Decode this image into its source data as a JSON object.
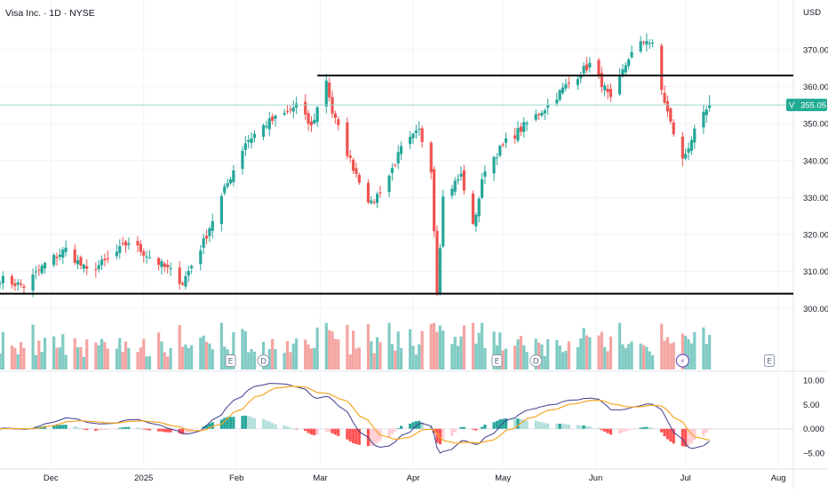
{
  "header": {
    "title": "Visa Inc. · 1D · NYSE",
    "currency": "USD"
  },
  "colors": {
    "up": "#26a69a",
    "down": "#ef5350",
    "vol_up": "#80cbc4",
    "vol_down": "#f4a4a2",
    "macd": "#3c3c8f",
    "signal": "#f5a623",
    "grid": "#f0f3fa",
    "last_price_bg": "#22ab94"
  },
  "chart_data": [
    {
      "type": "candlestick",
      "title": "Visa Inc. · 1D · NYSE",
      "y_unit": "USD",
      "y_range": [
        292,
        378
      ],
      "y_ticks": [
        300,
        310,
        320,
        330,
        340,
        350,
        360,
        370
      ],
      "x_range": [
        "2024-11-14",
        "2025-08-06"
      ],
      "x_ticks": [
        {
          "date": "2024-12-01",
          "label": "Dec"
        },
        {
          "date": "2025-01-01",
          "label": "2025"
        },
        {
          "date": "2025-02-01",
          "label": "Feb"
        },
        {
          "date": "2025-03-01",
          "label": "Mar"
        },
        {
          "date": "2025-04-01",
          "label": "Apr"
        },
        {
          "date": "2025-05-01",
          "label": "May"
        },
        {
          "date": "2025-06-01",
          "label": "Jun"
        },
        {
          "date": "2025-07-01",
          "label": "Jul"
        },
        {
          "date": "2025-08-01",
          "label": "Aug"
        }
      ],
      "last_price": {
        "symbol": "V",
        "value": 355.05
      },
      "horizontal_lines": [
        363,
        304
      ],
      "events": [
        {
          "date": "2025-01-30",
          "letter": "E"
        },
        {
          "date": "2025-02-10",
          "letter": "D"
        },
        {
          "date": "2025-04-29",
          "letter": "E"
        },
        {
          "date": "2025-05-12",
          "letter": "D"
        },
        {
          "date": "2025-06-30",
          "letter": "⚡"
        },
        {
          "date": "2025-07-29",
          "letter": "E"
        }
      ],
      "anchors": [
        [
          "2024-11-14",
          308
        ],
        [
          "2024-11-22",
          306
        ],
        [
          "2024-11-29",
          312
        ],
        [
          "2024-12-06",
          316
        ],
        [
          "2024-12-13",
          310
        ],
        [
          "2024-12-20",
          313
        ],
        [
          "2024-12-27",
          318
        ],
        [
          "2025-01-03",
          314
        ],
        [
          "2025-01-10",
          310
        ],
        [
          "2025-01-14",
          307
        ],
        [
          "2025-01-21",
          318
        ],
        [
          "2025-01-28",
          332
        ],
        [
          "2025-02-04",
          345
        ],
        [
          "2025-02-11",
          350
        ],
        [
          "2025-02-18",
          353
        ],
        [
          "2025-02-21",
          355
        ],
        [
          "2025-02-26",
          349
        ],
        [
          "2025-03-03",
          362
        ],
        [
          "2025-03-05",
          353
        ],
        [
          "2025-03-11",
          340
        ],
        [
          "2025-03-18",
          328
        ],
        [
          "2025-03-24",
          336
        ],
        [
          "2025-03-28",
          343
        ],
        [
          "2025-04-03",
          348
        ],
        [
          "2025-04-07",
          338
        ],
        [
          "2025-04-09",
          305
        ],
        [
          "2025-04-11",
          330
        ],
        [
          "2025-04-17",
          336
        ],
        [
          "2025-04-21",
          322
        ],
        [
          "2025-04-25",
          338
        ],
        [
          "2025-05-02",
          345
        ],
        [
          "2025-05-09",
          350
        ],
        [
          "2025-05-16",
          355
        ],
        [
          "2025-05-23",
          361
        ],
        [
          "2025-05-30",
          366
        ],
        [
          "2025-06-03",
          361
        ],
        [
          "2025-06-06",
          356
        ],
        [
          "2025-06-12",
          368
        ],
        [
          "2025-06-18",
          373
        ],
        [
          "2025-06-20",
          371
        ],
        [
          "2025-06-23",
          359
        ],
        [
          "2025-06-26",
          350
        ],
        [
          "2025-06-30",
          340
        ],
        [
          "2025-07-03",
          346
        ],
        [
          "2025-07-09",
          355
        ]
      ],
      "volume_pane": {
        "upper_bound_label": "",
        "note": "volume bars in price pane base"
      },
      "macd": {
        "y_range": [
          -6.5,
          11
        ],
        "y_ticks": [
          10.0,
          5.0,
          0.0,
          -5.0
        ],
        "y_tick_labels": [
          "10.00",
          "5.00",
          "0.000",
          "−5.00"
        ]
      }
    }
  ]
}
